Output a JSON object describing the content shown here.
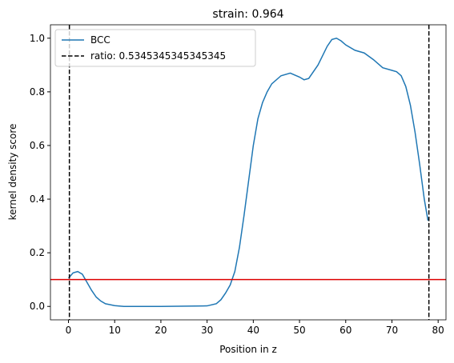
{
  "chart_data": {
    "type": "line",
    "title": "strain: 0.964",
    "xlabel": "Position in z",
    "ylabel": "kernel density score",
    "xlim": [
      -3.9,
      81.7
    ],
    "ylim": [
      -0.05,
      1.05
    ],
    "xticks": [
      0,
      10,
      20,
      30,
      40,
      50,
      60,
      70,
      80
    ],
    "yticks": [
      {
        "value": 0,
        "label": "0.0"
      },
      0.2,
      0.4,
      0.6,
      0.8,
      {
        "value": 1,
        "label": "1.0"
      }
    ],
    "series": [
      {
        "name": "BCC",
        "color": "#1f77b4",
        "x": [
          0,
          1,
          2,
          3,
          4,
          5,
          6,
          7,
          8,
          10,
          12,
          20,
          30,
          32,
          33,
          34,
          35,
          36,
          37,
          38,
          39,
          40,
          41,
          42,
          43,
          44,
          46,
          48,
          50,
          51,
          52,
          54,
          56,
          57,
          58,
          59,
          60,
          62,
          64,
          66,
          68,
          70,
          71,
          72,
          73,
          74,
          75,
          76,
          77,
          77.8
        ],
        "values": [
          0.105,
          0.125,
          0.13,
          0.12,
          0.09,
          0.06,
          0.035,
          0.02,
          0.01,
          0.003,
          0,
          0,
          0.002,
          0.01,
          0.025,
          0.05,
          0.08,
          0.13,
          0.22,
          0.34,
          0.47,
          0.6,
          0.7,
          0.76,
          0.8,
          0.83,
          0.86,
          0.87,
          0.855,
          0.845,
          0.85,
          0.9,
          0.97,
          0.995,
          1.0,
          0.99,
          0.975,
          0.955,
          0.945,
          0.92,
          0.89,
          0.88,
          0.875,
          0.86,
          0.82,
          0.75,
          0.65,
          0.53,
          0.4,
          0.32
        ]
      }
    ],
    "vlines": {
      "label": "ratio: 0.5345345345345345",
      "color": "#000000",
      "x": [
        0.2,
        78
      ]
    },
    "hline": {
      "y": 0.1,
      "color": "#dd0000"
    },
    "legend": "upper left"
  }
}
